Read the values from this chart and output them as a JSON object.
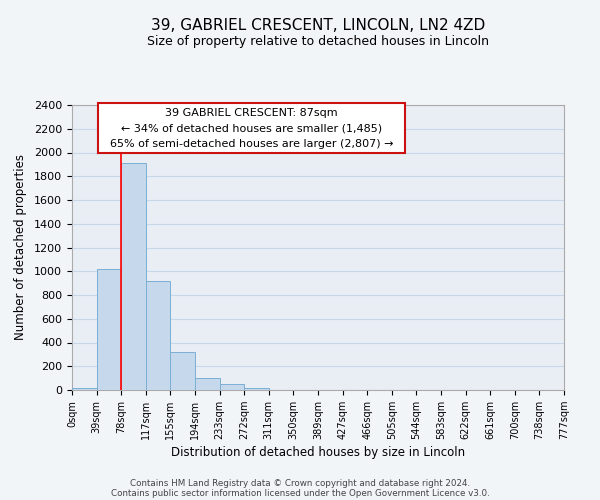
{
  "title1": "39, GABRIEL CRESCENT, LINCOLN, LN2 4ZD",
  "title2": "Size of property relative to detached houses in Lincoln",
  "xlabel": "Distribution of detached houses by size in Lincoln",
  "ylabel": "Number of detached properties",
  "bin_labels": [
    "0sqm",
    "39sqm",
    "78sqm",
    "117sqm",
    "155sqm",
    "194sqm",
    "233sqm",
    "272sqm",
    "311sqm",
    "350sqm",
    "389sqm",
    "427sqm",
    "466sqm",
    "505sqm",
    "544sqm",
    "583sqm",
    "622sqm",
    "661sqm",
    "700sqm",
    "738sqm",
    "777sqm"
  ],
  "bar_values": [
    20,
    1020,
    1910,
    920,
    320,
    105,
    50,
    20,
    0,
    0,
    0,
    0,
    0,
    0,
    0,
    0,
    0,
    0,
    0,
    0
  ],
  "bar_color": "#c5d8ec",
  "bar_edge_color": "#7bafd4",
  "red_line_x": 2,
  "ylim": [
    0,
    2400
  ],
  "yticks": [
    0,
    200,
    400,
    600,
    800,
    1000,
    1200,
    1400,
    1600,
    1800,
    2000,
    2200,
    2400
  ],
  "annotation_title": "39 GABRIEL CRESCENT: 87sqm",
  "annotation_line1": "← 34% of detached houses are smaller (1,485)",
  "annotation_line2": "65% of semi-detached houses are larger (2,807) →",
  "footer1": "Contains HM Land Registry data © Crown copyright and database right 2024.",
  "footer2": "Contains public sector information licensed under the Open Government Licence v3.0.",
  "background_color": "#f2f5f8",
  "plot_bg_color": "#e8eef4",
  "grid_color": "#c8d8e8"
}
